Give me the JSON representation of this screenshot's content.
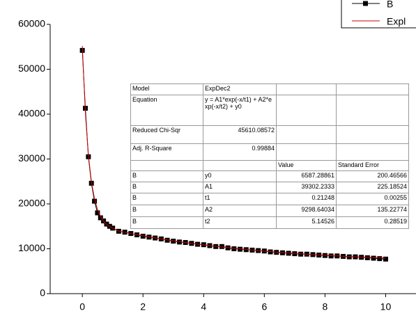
{
  "chart_data": {
    "type": "line",
    "x": [
      0,
      0.1,
      0.2,
      0.3,
      0.4,
      0.5,
      0.6,
      0.7,
      0.8,
      0.9,
      1.0,
      1.2,
      1.4,
      1.6,
      1.8,
      2.0,
      2.2,
      2.4,
      2.6,
      2.8,
      3.0,
      3.2,
      3.4,
      3.6,
      3.8,
      4.0,
      4.2,
      4.4,
      4.6,
      4.8,
      5.0,
      5.2,
      5.4,
      5.6,
      5.8,
      6.0,
      6.2,
      6.4,
      6.6,
      6.8,
      7.0,
      7.2,
      7.4,
      7.6,
      7.8,
      8.0,
      8.2,
      8.4,
      8.6,
      8.8,
      9.0,
      9.2,
      9.4,
      9.6,
      9.8,
      10.0
    ],
    "series": [
      {
        "name": "B",
        "color": "#000000",
        "marker": "square",
        "values": [
          54200,
          41300,
          30500,
          24600,
          20600,
          18000,
          16900,
          16200,
          15500,
          15000,
          14600,
          13900,
          13700,
          13400,
          13100,
          12800,
          12600,
          12400,
          12200,
          11900,
          11700,
          11500,
          11400,
          11200,
          11000,
          10900,
          10700,
          10500,
          10500,
          10200,
          10000,
          9900,
          9800,
          9700,
          9600,
          9500,
          9300,
          9200,
          9100,
          9000,
          8900,
          8800,
          8800,
          8700,
          8600,
          8500,
          8400,
          8400,
          8300,
          8200,
          8200,
          8100,
          8000,
          7900,
          7800,
          7700
        ]
      },
      {
        "name": "Expl",
        "color": "#cc0000",
        "values": [
          55188,
          40259,
          30867,
          24937,
          21176,
          18763,
          17197,
          16161,
          15459,
          14963,
          14597,
          13952,
          13671,
          13400,
          13141,
          12891,
          12651,
          12419,
          12197,
          11983,
          11778,
          11580,
          11389,
          11206,
          11030,
          10861,
          10698,
          10541,
          10390,
          10245,
          10106,
          9972,
          9843,
          9719,
          9599,
          9484,
          9374,
          9268,
          9166,
          9067,
          8973,
          8882,
          8795,
          8710,
          8629,
          8551,
          8477,
          8404,
          8335,
          8268,
          8204,
          8143,
          8083,
          8026,
          7972,
          7919
        ]
      }
    ],
    "xlim": [
      -1.06,
      11
    ],
    "ylim": [
      0,
      60000
    ],
    "xticks": [
      0,
      2,
      4,
      6,
      8,
      10
    ],
    "yticks": [
      0,
      10000,
      20000,
      30000,
      40000,
      50000,
      60000
    ]
  },
  "table": {
    "rows": [
      [
        "Model",
        "ExpDec2",
        null,
        null
      ],
      [
        "Equation",
        "y = A1*exp(-x/t1) + A2*exp(-x/t2) + y0",
        null,
        null
      ],
      [
        "Reduced Chi-Sqr",
        "45610.08572",
        null,
        null
      ],
      [
        "Adj. R-Square",
        "0.99884",
        null,
        null
      ],
      [
        null,
        null,
        "Value",
        "Standard Error"
      ],
      [
        "B",
        "y0",
        "6587.28861",
        "200.46566"
      ],
      [
        "B",
        "A1",
        "39302.2333",
        "225.18524"
      ],
      [
        "B",
        "t1",
        "0.21248",
        "0.00255"
      ],
      [
        "B",
        "A2",
        "9298.64034",
        "135.22774"
      ],
      [
        "B",
        "t2",
        "5.14526",
        "0.28519"
      ]
    ]
  }
}
